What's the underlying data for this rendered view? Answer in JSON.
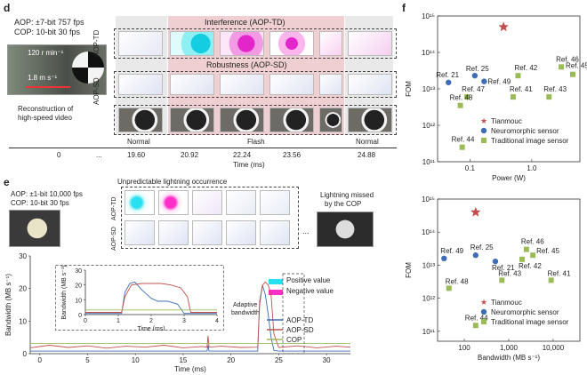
{
  "panel_d": {
    "label": "d",
    "aop_spec": "AOP: ±7-bit 757 fps",
    "cop_spec": "COP: 10-bit  30 fps",
    "rpm_label": "120 r min⁻¹",
    "speed_label": "1.8 m s⁻¹",
    "recon_text_1": "Reconstruction of",
    "recon_text_2": "high-speed video",
    "row_label_td": "AOP-TD",
    "row_label_sd": "AOP-SD",
    "interference_title": "Interference (AOP-TD)",
    "robustness_title": "Robustness (AOP-SD)",
    "phase_normal_left": "Normal",
    "phase_flash": "Flash",
    "phase_normal_right": "Normal",
    "time_ticks": [
      "0",
      "...",
      "19.60",
      "20.92",
      "22.24",
      "23.56",
      "24.88"
    ],
    "time_axis_label": "Time (ms)",
    "flash_color": "#e9b9bb"
  },
  "panel_e": {
    "label": "e",
    "aop_spec": "AOP: ±1-bit 10,000 fps",
    "cop_spec": "COP: 10-bit 30 fps",
    "lightning_title": "Unpredictable lightning occurrence",
    "missed_1": "Lightning missed",
    "missed_2": "by the COP",
    "row_label_td": "AOP-TD",
    "row_label_sd": "AOP-SD",
    "ellipsis": "...",
    "legend_positive": "Positive value",
    "legend_negative": "Negative value",
    "adaptive_1": "Adaptive",
    "adaptive_2": "bandwidth",
    "positive_color": "#29e0f0",
    "negative_color": "#ff2fc8"
  },
  "panel_f": {
    "label": "f",
    "legend": {
      "tianmouc": "Tianmouc",
      "neuromorphic": "Neuromorphic sensor",
      "traditional": "Traditional image sensor"
    },
    "colors": {
      "tianmouc": "#c0504d",
      "neuromorphic": "#3e6db5",
      "traditional": "#9bbb59"
    }
  },
  "chart_data": [
    {
      "type": "line",
      "ylabel": "Bandwidth (MB s⁻¹)",
      "xlabel": "Time (ms)",
      "xlim": [
        -1,
        32.5
      ],
      "ylim": [
        0,
        30
      ],
      "xticks": [
        "0",
        "5",
        "10",
        "15",
        "20",
        "25",
        "30"
      ],
      "yticks": [
        "0",
        "10",
        "20",
        "30"
      ],
      "grid": false,
      "legend": "bottom-right",
      "series": [
        {
          "name": "AOP-TD",
          "color": "#3e6db5",
          "x": [
            -1,
            3,
            7,
            10,
            15,
            17.5,
            17.6,
            17.7,
            20,
            22.8,
            23.0,
            23.3,
            23.6,
            23.9,
            24.2,
            24.5,
            25,
            32.5
          ],
          "y": [
            0.8,
            0.8,
            0.8,
            0.8,
            0.8,
            0.8,
            2.5,
            0.8,
            0.8,
            0.8,
            16,
            21,
            18,
            12,
            5,
            1,
            0.8,
            0.8
          ]
        },
        {
          "name": "AOP-SD",
          "color": "#c0504d",
          "x": [
            -1,
            1,
            3,
            5,
            7,
            9,
            11,
            13,
            15,
            17,
            17.5,
            17.6,
            17.7,
            19,
            21,
            22.8,
            23.0,
            23.3,
            23.6,
            23.9,
            24.2,
            24.5,
            25,
            27,
            29,
            31,
            32.5
          ],
          "y": [
            1.8,
            2.6,
            1.9,
            2.4,
            1.7,
            2.3,
            2.0,
            2.6,
            1.8,
            2.2,
            2.0,
            5.5,
            2.0,
            2.3,
            1.9,
            2.0,
            15,
            21,
            22,
            21,
            18,
            6,
            1.9,
            2.4,
            1.8,
            2.3,
            2.0
          ]
        },
        {
          "name": "COP",
          "color": "#9bbb59",
          "x": [
            -1,
            32.5
          ],
          "y": [
            3.1,
            3.1
          ]
        }
      ]
    },
    {
      "type": "line",
      "ylabel": "Bandwidth (MB s⁻¹)",
      "xlabel": "Time (ms)",
      "xlim": [
        0,
        4
      ],
      "ylim": [
        0,
        30
      ],
      "xticks": [
        "0",
        "1",
        "2",
        "3",
        "4"
      ],
      "yticks": [
        "0",
        "10",
        "20",
        "30"
      ],
      "series": [
        {
          "name": "AOP-TD",
          "color": "#3e6db5",
          "x": [
            0,
            1.1,
            1.2,
            1.35,
            1.5,
            1.7,
            1.9,
            2.0,
            2.2,
            2.5,
            2.8,
            3.0,
            4
          ],
          "y": [
            0.8,
            0.8,
            15,
            21,
            22,
            17,
            13,
            11,
            9,
            9,
            7,
            0.8,
            0.8
          ]
        },
        {
          "name": "AOP-SD",
          "color": "#c0504d",
          "x": [
            0,
            1.1,
            1.2,
            1.4,
            1.7,
            2.0,
            2.3,
            2.6,
            2.9,
            3.1,
            3.2,
            4
          ],
          "y": [
            1.5,
            1.5,
            12,
            20,
            21,
            21,
            21,
            20,
            18,
            12,
            1.5,
            1.5
          ]
        },
        {
          "name": "COP",
          "color": "#9bbb59",
          "x": [
            0,
            4
          ],
          "y": [
            3.1,
            3.1
          ]
        }
      ]
    },
    {
      "type": "scatter",
      "xlabel": "Power (W)",
      "ylabel": "FOM",
      "xscale": "log",
      "yscale": "log",
      "xlim": [
        0.03,
        6
      ],
      "ylim": [
        100000000000.0,
        1000000000000000.0
      ],
      "xticks": [
        "0.1",
        "1.0"
      ],
      "yticks": [
        "10¹¹",
        "10¹²",
        "10¹³",
        "10¹⁴",
        "10¹⁵"
      ],
      "points": [
        {
          "group": "tianmouc",
          "label": "",
          "x": 0.35,
          "y": 500000000000000.0
        },
        {
          "group": "neuromorphic",
          "label": "Ref. 21",
          "x": 0.045,
          "y": 15000000000000.0
        },
        {
          "group": "neuromorphic",
          "label": "Ref. 25",
          "x": 0.12,
          "y": 23000000000000.0
        },
        {
          "group": "neuromorphic",
          "label": "Ref. 49",
          "x": 0.17,
          "y": 16000000000000.0
        },
        {
          "group": "traditional",
          "label": "Ref. 42",
          "x": 0.6,
          "y": 23000000000000.0
        },
        {
          "group": "traditional",
          "label": "Ref. 46",
          "x": 3.0,
          "y": 40000000000000.0
        },
        {
          "group": "traditional",
          "label": "Ref. 45",
          "x": 4.6,
          "y": 25000000000000.0
        },
        {
          "group": "traditional",
          "label": "Ref. 47",
          "x": 0.09,
          "y": 6000000000000.0
        },
        {
          "group": "traditional",
          "label": "Ref. 41",
          "x": 0.5,
          "y": 6000000000000.0
        },
        {
          "group": "traditional",
          "label": "Ref. 43",
          "x": 1.9,
          "y": 6000000000000.0
        },
        {
          "group": "traditional",
          "label": "Ref. 48",
          "x": 0.07,
          "y": 3500000000000.0
        },
        {
          "group": "traditional",
          "label": "Ref. 44",
          "x": 0.075,
          "y": 250000000000.0
        }
      ]
    },
    {
      "type": "scatter",
      "xlabel": "Bandwidth (MB s⁻¹)",
      "ylabel": "FOM",
      "xscale": "log",
      "yscale": "log",
      "xlim": [
        25,
        40000
      ],
      "ylim": [
        50000000000.0,
        1000000000000000.0
      ],
      "xticks": [
        "100",
        "1,000",
        "10,000"
      ],
      "yticks": [
        "10¹¹",
        "10¹²",
        "10¹³",
        "10¹⁴",
        "10¹⁵"
      ],
      "points": [
        {
          "group": "tianmouc",
          "label": "",
          "x": 180,
          "y": 400000000000000.0
        },
        {
          "group": "neuromorphic",
          "label": "Ref. 49",
          "x": 35,
          "y": 16000000000000.0
        },
        {
          "group": "neuromorphic",
          "label": "Ref. 25",
          "x": 180,
          "y": 20000000000000.0
        },
        {
          "group": "neuromorphic",
          "label": "Ref. 21",
          "x": 500,
          "y": 13000000000000.0
        },
        {
          "group": "traditional",
          "label": "Ref. 46",
          "x": 2500,
          "y": 30000000000000.0
        },
        {
          "group": "traditional",
          "label": "Ref. 45",
          "x": 3500,
          "y": 20000000000000.0
        },
        {
          "group": "traditional",
          "label": "Ref. 42",
          "x": 2000,
          "y": 15000000000000.0
        },
        {
          "group": "traditional",
          "label": "Ref. 43",
          "x": 700,
          "y": 3500000000000.0
        },
        {
          "group": "traditional",
          "label": "Ref. 41",
          "x": 9000,
          "y": 3500000000000.0
        },
        {
          "group": "traditional",
          "label": "Ref. 48",
          "x": 45,
          "y": 2000000000000.0
        },
        {
          "group": "traditional",
          "label": "Ref. 44",
          "x": 180,
          "y": 150000000000.0
        }
      ]
    }
  ]
}
